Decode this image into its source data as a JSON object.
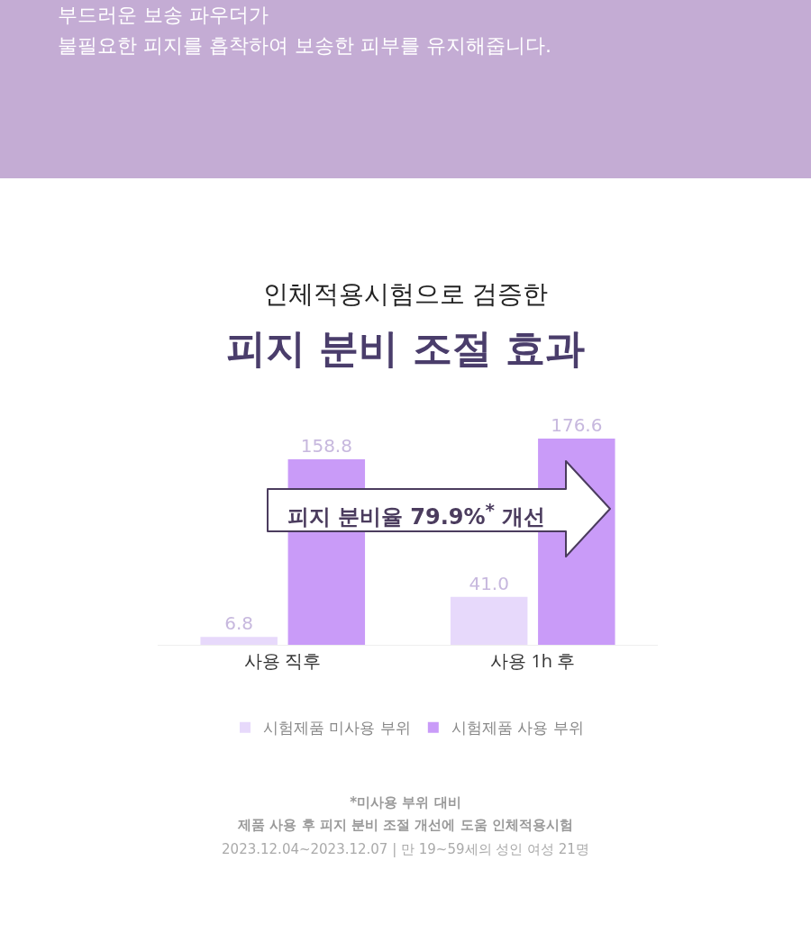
{
  "chart_data": {
    "type": "bar",
    "title": "피지 분비 조절 효과",
    "subtitle": "인체적용시험으로 검증한",
    "categories": [
      "사용 직후",
      "사용 1h 후"
    ],
    "series": [
      {
        "name": "시험제품 미사용 부위",
        "color": "#e7d9fb",
        "values": [
          6.8,
          41.0
        ],
        "value_labels": [
          "6.8",
          "41.0"
        ]
      },
      {
        "name": "시험제품 사용 부위",
        "color": "#c99bf8",
        "values": [
          158.8,
          176.6
        ],
        "value_labels": [
          "158.8",
          "176.6"
        ]
      }
    ],
    "legend": "bottom",
    "annotations": [
      "부드러운 보송 파우더가",
      "불필요한 피지를 흡착하여 보송한 피부를 유지해줍니다.",
      "피지 분비율 79.9%$^{*}$ 개선",
      "*미사용 부위 대비",
      "제품 사용 후 피지 분비 조절 개선에 도움 인체적용시험",
      "2023.12.04~2023.12.07 | 만 19~59세의 성인 여성 21명"
    ]
  }
}
